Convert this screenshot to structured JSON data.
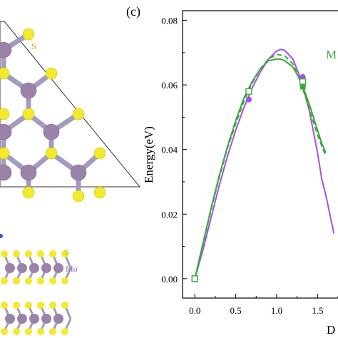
{
  "panel_label": "(c)",
  "structure_labels": {
    "top_view_atom": "S",
    "side_view_top_atom": "S",
    "side_view_middle_atom": "Mo"
  },
  "colors": {
    "mo_atom": "#9b82a8",
    "s_atom": "#f2ea2a",
    "bond": "#a49bc0",
    "label_s": "#c9b400",
    "label_mo": "#8a6fa0",
    "series_purple": "#a64ee6",
    "series_green": "#3aa83a"
  },
  "chart_data": {
    "type": "line",
    "ylabel": "Energy(eV)",
    "xlabel": "D",
    "xlim": [
      -0.15,
      1.75
    ],
    "ylim": [
      -0.006,
      0.083
    ],
    "x_ticks": [
      "0.0",
      "0.5",
      "1.0",
      "1.5"
    ],
    "x_tick_values": [
      0.0,
      0.5,
      1.0,
      1.5
    ],
    "y_ticks": [
      "0.00",
      "0.02",
      "0.04",
      "0.06",
      "0.08"
    ],
    "y_tick_values": [
      0.0,
      0.02,
      0.04,
      0.06,
      0.08
    ],
    "legend_text": "M",
    "grid": false,
    "series": [
      {
        "color": "purple",
        "style": "solid",
        "marker": "filled-circle",
        "x": [
          0.0,
          0.1,
          0.2,
          0.3,
          0.4,
          0.5,
          0.6,
          0.7,
          0.8,
          0.9,
          1.0,
          1.05,
          1.1,
          1.2,
          1.3,
          1.4,
          1.5,
          1.55,
          1.6,
          1.7
        ],
        "y": [
          0.0,
          0.009,
          0.019,
          0.029,
          0.038,
          0.046,
          0.053,
          0.059,
          0.064,
          0.068,
          0.0705,
          0.071,
          0.0707,
          0.068,
          0.0615,
          0.052,
          0.039,
          0.031,
          0.026,
          0.014
        ],
        "marker_x": [
          0.66,
          1.32
        ],
        "marker_y": [
          0.0555,
          0.0625
        ]
      },
      {
        "color": "green",
        "style": "solid",
        "marker": "open-square",
        "x": [
          0.0,
          0.1,
          0.2,
          0.3,
          0.4,
          0.5,
          0.6,
          0.7,
          0.8,
          0.9,
          1.0,
          1.05,
          1.1,
          1.2,
          1.3,
          1.4,
          1.5,
          1.55,
          1.6
        ],
        "y": [
          0.0,
          0.011,
          0.022,
          0.032,
          0.041,
          0.049,
          0.056,
          0.061,
          0.065,
          0.0675,
          0.068,
          0.068,
          0.0675,
          0.0655,
          0.061,
          0.054,
          0.046,
          0.042,
          0.039
        ],
        "marker_x": [
          0.0,
          0.66,
          1.32
        ],
        "marker_y": [
          0.0,
          0.058,
          0.061
        ]
      },
      {
        "color": "green",
        "style": "dashed",
        "marker": "filled-square",
        "x": [
          0.0,
          0.1,
          0.2,
          0.3,
          0.4,
          0.5,
          0.6,
          0.7,
          0.8,
          0.9,
          1.0,
          1.1,
          1.2,
          1.3,
          1.4,
          1.5,
          1.6
        ],
        "y": [
          0.0,
          0.0105,
          0.0215,
          0.0315,
          0.0405,
          0.048,
          0.055,
          0.0605,
          0.065,
          0.068,
          0.0695,
          0.069,
          0.0665,
          0.0605,
          0.0525,
          0.0445,
          0.038
        ],
        "marker_x": [
          1.32
        ],
        "marker_y": [
          0.0595
        ]
      }
    ]
  }
}
